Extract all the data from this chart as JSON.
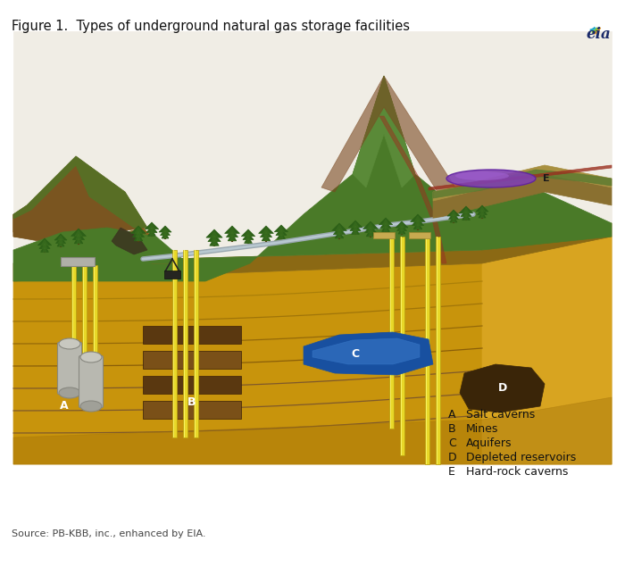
{
  "title": "Figure 1.  Types of underground natural gas storage facilities",
  "source_text": "Source: PB-KBB, inc., enhanced by EIA.",
  "legend_items": [
    [
      "A",
      "Salt caverns"
    ],
    [
      "B",
      "Mines"
    ],
    [
      "C",
      "Aquifers"
    ],
    [
      "D",
      "Depleted reservoirs"
    ],
    [
      "E",
      "Hard-rock caverns"
    ]
  ],
  "bg_color": "#ffffff",
  "title_fontsize": 10.5,
  "legend_fontsize": 9,
  "source_fontsize": 8,
  "fig_width": 7.0,
  "fig_height": 6.53,
  "fig_dpi": 100
}
